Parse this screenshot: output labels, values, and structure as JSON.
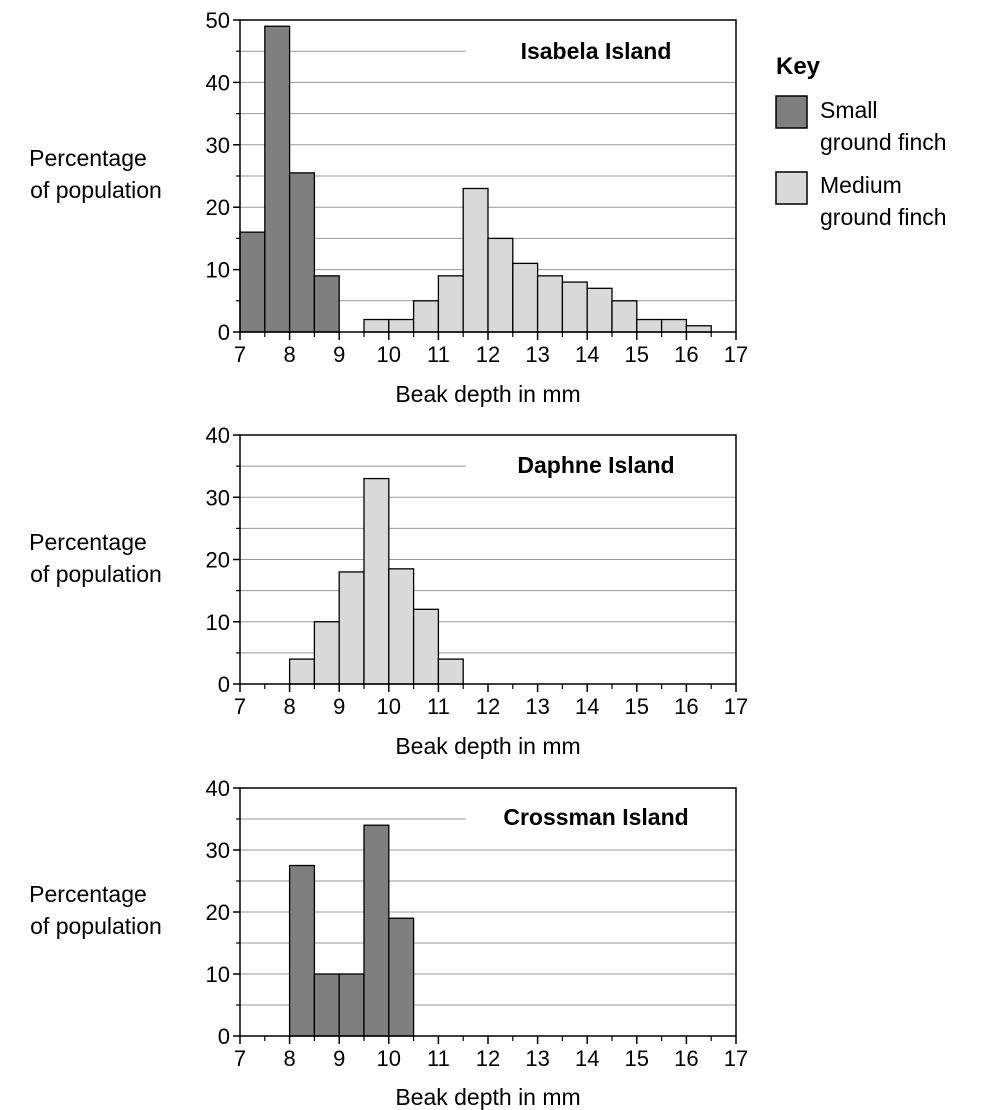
{
  "colors": {
    "small": "#7f7f7f",
    "medium": "#d9d9d9",
    "grid": "#9a9a9a",
    "axis": "#000000"
  },
  "key": {
    "title": "Key",
    "items": [
      {
        "lines": [
          "Small",
          "ground finch"
        ],
        "color": "#7f7f7f"
      },
      {
        "lines": [
          "Medium",
          "ground finch"
        ],
        "color": "#d9d9d9"
      }
    ]
  },
  "chart_data": [
    {
      "type": "bar",
      "title": "Isabela Island",
      "xlabel": "Beak depth in mm",
      "ylabel": [
        "Percentage",
        "of population"
      ],
      "xlim": [
        7,
        17
      ],
      "ylim": [
        0,
        50
      ],
      "yticks": [
        0,
        10,
        20,
        30,
        40,
        50
      ],
      "xticks": [
        7,
        8,
        9,
        10,
        11,
        12,
        13,
        14,
        15,
        16,
        17
      ],
      "bin_width": 0.5,
      "grid": true,
      "series": [
        {
          "name": "Small ground finch",
          "color": "#7f7f7f",
          "bins": [
            [
              7.25,
              16
            ],
            [
              7.75,
              49
            ],
            [
              8.25,
              25.5
            ],
            [
              8.75,
              9
            ]
          ]
        },
        {
          "name": "Medium ground finch",
          "color": "#d9d9d9",
          "bins": [
            [
              9.75,
              2
            ],
            [
              10.25,
              2
            ],
            [
              10.75,
              5
            ],
            [
              11.25,
              9
            ],
            [
              11.75,
              23
            ],
            [
              12.25,
              15
            ],
            [
              12.75,
              11
            ],
            [
              13.25,
              9
            ],
            [
              13.75,
              8
            ],
            [
              14.25,
              7
            ],
            [
              14.75,
              5
            ],
            [
              15.25,
              2
            ],
            [
              15.75,
              2
            ],
            [
              16.25,
              1
            ]
          ]
        }
      ]
    },
    {
      "type": "bar",
      "title": "Daphne Island",
      "xlabel": "Beak depth in mm",
      "ylabel": [
        "Percentage",
        "of population"
      ],
      "xlim": [
        7,
        17
      ],
      "ylim": [
        0,
        40
      ],
      "yticks": [
        0,
        10,
        20,
        30,
        40
      ],
      "xticks": [
        7,
        8,
        9,
        10,
        11,
        12,
        13,
        14,
        15,
        16,
        17
      ],
      "bin_width": 0.5,
      "grid": true,
      "series": [
        {
          "name": "Medium ground finch",
          "color": "#d9d9d9",
          "bins": [
            [
              8.25,
              4
            ],
            [
              8.75,
              10
            ],
            [
              9.25,
              18
            ],
            [
              9.75,
              33
            ],
            [
              10.25,
              18.5
            ],
            [
              10.75,
              12
            ],
            [
              11.25,
              4
            ]
          ]
        }
      ]
    },
    {
      "type": "bar",
      "title": "Crossman Island",
      "xlabel": "Beak depth in mm",
      "ylabel": [
        "Percentage",
        "of population"
      ],
      "xlim": [
        7,
        17
      ],
      "ylim": [
        0,
        40
      ],
      "yticks": [
        0,
        10,
        20,
        30,
        40
      ],
      "xticks": [
        7,
        8,
        9,
        10,
        11,
        12,
        13,
        14,
        15,
        16,
        17
      ],
      "bin_width": 0.5,
      "grid": true,
      "series": [
        {
          "name": "Small ground finch",
          "color": "#7f7f7f",
          "bins": [
            [
              8.25,
              27.5
            ],
            [
              8.75,
              10
            ],
            [
              9.25,
              10
            ],
            [
              9.75,
              34
            ],
            [
              10.25,
              19
            ]
          ]
        }
      ]
    }
  ]
}
